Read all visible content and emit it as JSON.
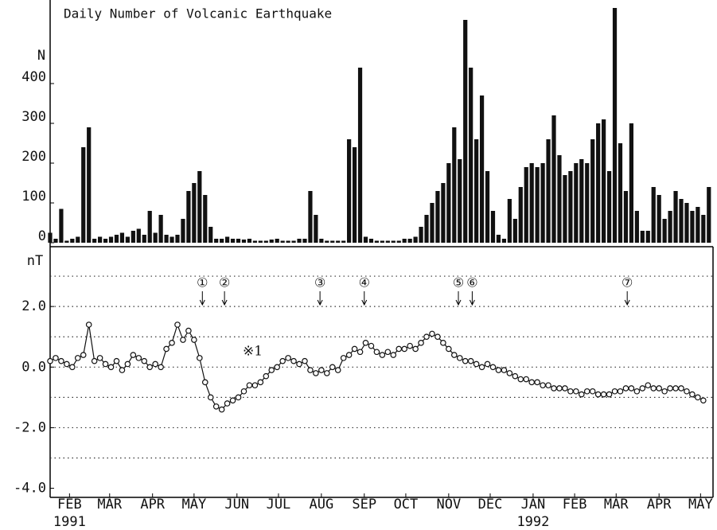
{
  "chart_data": [
    {
      "type": "bar",
      "title": "Daily Number of Volcanic Earthquake",
      "y_label": "N",
      "color": "#111111",
      "xlim": [
        0,
        479
      ],
      "ylim": [
        0,
        610
      ],
      "yticks": [
        0,
        100,
        200,
        300,
        400
      ],
      "x": [
        0,
        4,
        8,
        12,
        16,
        20,
        24,
        28,
        32,
        36,
        40,
        44,
        48,
        52,
        56,
        60,
        64,
        68,
        72,
        76,
        80,
        84,
        88,
        92,
        96,
        100,
        104,
        108,
        112,
        116,
        120,
        124,
        128,
        132,
        136,
        140,
        144,
        148,
        152,
        156,
        160,
        164,
        168,
        172,
        176,
        180,
        184,
        188,
        192,
        196,
        200,
        204,
        208,
        212,
        216,
        220,
        224,
        228,
        232,
        236,
        240,
        244,
        248,
        252,
        256,
        260,
        264,
        268,
        272,
        276,
        280,
        284,
        288,
        292,
        296,
        300,
        304,
        308,
        312,
        316,
        320,
        324,
        328,
        332,
        336,
        340,
        344,
        348,
        352,
        356,
        360,
        364,
        368,
        372,
        376,
        380,
        384,
        388,
        392,
        396,
        400,
        404,
        408,
        412,
        416,
        420,
        424,
        428,
        432,
        436,
        440,
        444,
        448,
        452,
        456,
        460,
        464,
        468,
        472,
        476
      ],
      "values": [
        25,
        10,
        85,
        5,
        10,
        15,
        240,
        290,
        10,
        15,
        10,
        15,
        20,
        25,
        15,
        30,
        35,
        20,
        80,
        25,
        70,
        20,
        15,
        20,
        60,
        130,
        150,
        180,
        120,
        40,
        10,
        10,
        15,
        10,
        10,
        8,
        10,
        5,
        5,
        5,
        8,
        10,
        5,
        5,
        5,
        10,
        10,
        130,
        70,
        10,
        5,
        5,
        5,
        5,
        260,
        240,
        440,
        15,
        10,
        5,
        5,
        5,
        5,
        5,
        10,
        10,
        15,
        40,
        70,
        100,
        130,
        150,
        200,
        290,
        210,
        560,
        440,
        260,
        370,
        180,
        80,
        20,
        10,
        110,
        60,
        140,
        190,
        200,
        190,
        200,
        260,
        320,
        220,
        170,
        180,
        200,
        210,
        200,
        260,
        300,
        310,
        180,
        590,
        250,
        130,
        300,
        80,
        30,
        30,
        140,
        120,
        60,
        80,
        130,
        110,
        100,
        80,
        90,
        70,
        140
      ]
    },
    {
      "type": "line",
      "y_label": "nT",
      "color": "#111111",
      "marker": "circle",
      "note": "※1",
      "xlim": [
        0,
        479
      ],
      "ylim": [
        -4.3,
        4.0
      ],
      "yticks": [
        {
          "value": 2,
          "label": "2.0"
        },
        {
          "value": 0,
          "label": "0.0"
        },
        {
          "value": -2,
          "label": "-2.0"
        },
        {
          "value": -4,
          "label": "-4.0"
        }
      ],
      "grid_values": [
        -3,
        -2,
        -1,
        0,
        1,
        2,
        3
      ],
      "xticks": [
        {
          "value": 14,
          "label": "FEB"
        },
        {
          "value": 43,
          "label": "MAR"
        },
        {
          "value": 74,
          "label": "APR"
        },
        {
          "value": 104,
          "label": "MAY"
        },
        {
          "value": 135,
          "label": "JUN"
        },
        {
          "value": 165,
          "label": "JUL"
        },
        {
          "value": 196,
          "label": "AUG"
        },
        {
          "value": 227,
          "label": "SEP"
        },
        {
          "value": 257,
          "label": "OCT"
        },
        {
          "value": 288,
          "label": "NOV"
        },
        {
          "value": 318,
          "label": "DEC"
        },
        {
          "value": 349,
          "label": "JAN"
        },
        {
          "value": 379,
          "label": "FEB"
        },
        {
          "value": 409,
          "label": "MAR"
        },
        {
          "value": 440,
          "label": "APR"
        },
        {
          "value": 470,
          "label": "MAY"
        }
      ],
      "year_labels": [
        {
          "value": 14,
          "label": "1991"
        },
        {
          "value": 349,
          "label": "1992"
        }
      ],
      "annotations": [
        {
          "label": "①",
          "x": 110
        },
        {
          "label": "②",
          "x": 126
        },
        {
          "label": "③",
          "x": 195
        },
        {
          "label": "④",
          "x": 227
        },
        {
          "label": "⑤",
          "x": 295
        },
        {
          "label": "⑥",
          "x": 305
        },
        {
          "label": "⑦",
          "x": 417
        }
      ],
      "x": [
        0,
        4,
        8,
        12,
        16,
        20,
        24,
        28,
        32,
        36,
        40,
        44,
        48,
        52,
        56,
        60,
        64,
        68,
        72,
        76,
        80,
        84,
        88,
        92,
        96,
        100,
        104,
        108,
        112,
        116,
        120,
        124,
        128,
        132,
        136,
        140,
        144,
        148,
        152,
        156,
        160,
        164,
        168,
        172,
        176,
        180,
        184,
        188,
        192,
        196,
        200,
        204,
        208,
        212,
        216,
        220,
        224,
        228,
        232,
        236,
        240,
        244,
        248,
        252,
        256,
        260,
        264,
        268,
        272,
        276,
        280,
        284,
        288,
        292,
        296,
        300,
        304,
        308,
        312,
        316,
        320,
        324,
        328,
        332,
        336,
        340,
        344,
        348,
        352,
        356,
        360,
        364,
        368,
        372,
        376,
        380,
        384,
        388,
        392,
        396,
        400,
        404,
        408,
        412,
        416,
        420,
        424,
        428,
        432,
        436,
        440,
        444,
        448,
        452,
        456,
        460,
        464,
        468,
        472
      ],
      "values": [
        0.2,
        0.3,
        0.2,
        0.1,
        0.0,
        0.3,
        0.4,
        1.4,
        0.2,
        0.3,
        0.1,
        0.0,
        0.2,
        -0.1,
        0.1,
        0.4,
        0.3,
        0.2,
        0.0,
        0.1,
        0.0,
        0.6,
        0.8,
        1.4,
        0.9,
        1.2,
        0.9,
        0.3,
        -0.5,
        -1.0,
        -1.3,
        -1.4,
        -1.2,
        -1.1,
        -1.0,
        -0.8,
        -0.6,
        -0.6,
        -0.5,
        -0.3,
        -0.1,
        0.0,
        0.2,
        0.3,
        0.2,
        0.1,
        0.2,
        -0.1,
        -0.2,
        -0.1,
        -0.2,
        0.0,
        -0.1,
        0.3,
        0.4,
        0.6,
        0.5,
        0.8,
        0.7,
        0.5,
        0.4,
        0.5,
        0.4,
        0.6,
        0.6,
        0.7,
        0.6,
        0.8,
        1.0,
        1.1,
        1.0,
        0.8,
        0.6,
        0.4,
        0.3,
        0.2,
        0.2,
        0.1,
        0.0,
        0.1,
        0.0,
        -0.1,
        -0.1,
        -0.2,
        -0.3,
        -0.4,
        -0.4,
        -0.5,
        -0.5,
        -0.6,
        -0.6,
        -0.7,
        -0.7,
        -0.7,
        -0.8,
        -0.8,
        -0.9,
        -0.8,
        -0.8,
        -0.9,
        -0.9,
        -0.9,
        -0.8,
        -0.8,
        -0.7,
        -0.7,
        -0.8,
        -0.7,
        -0.6,
        -0.7,
        -0.7,
        -0.8,
        -0.7,
        -0.7,
        -0.7,
        -0.8,
        -0.9,
        -1.0,
        -1.1
      ]
    }
  ]
}
